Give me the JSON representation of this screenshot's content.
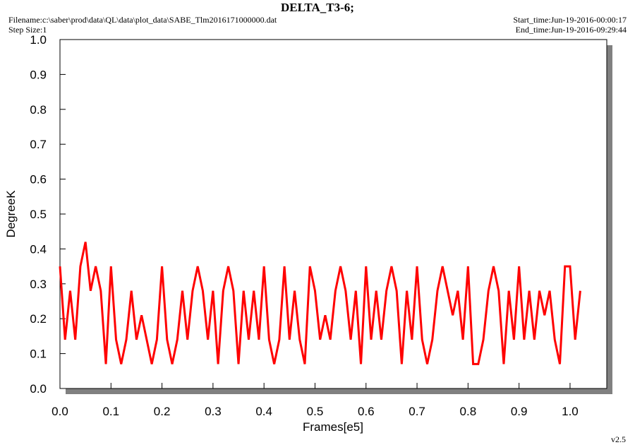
{
  "chart_data": {
    "type": "line",
    "title": "DELTA_T3-6;",
    "filename": "Filename:c:\\saber\\prod\\data\\QL\\data\\plot_data\\SABE_Tlm2016171000000.dat",
    "step_size": "Step Size:1",
    "start_time": "Start_time:Jun-19-2016-00:00:17",
    "end_time": "End_time:Jun-19-2016-09:29:44",
    "version": "v2.5",
    "xlabel": "Frames[e5]",
    "ylabel": "DegreeK",
    "xlim": [
      0,
      1.072
    ],
    "ylim": [
      0,
      1
    ],
    "xticks": [
      {
        "value": 0,
        "label": "0.0"
      },
      0.1,
      0.2,
      0.3,
      0.4,
      0.5,
      0.6,
      0.7,
      0.8,
      0.9,
      {
        "value": 1,
        "label": "1.0"
      }
    ],
    "yticks": [
      {
        "value": 0,
        "label": "0.0"
      },
      0.1,
      0.2,
      0.3,
      0.4,
      0.5,
      0.6,
      0.7,
      0.8,
      0.9,
      {
        "value": 1,
        "label": "1.0"
      }
    ],
    "x": [
      0,
      0.01,
      0.02,
      0.03,
      0.04,
      0.05,
      0.06,
      0.07,
      0.08,
      0.09,
      0.1,
      0.11,
      0.12,
      0.13,
      0.14,
      0.15,
      0.16,
      0.17,
      0.18,
      0.19,
      0.2,
      0.21,
      0.22,
      0.23,
      0.24,
      0.25,
      0.26,
      0.27,
      0.28,
      0.29,
      0.3,
      0.31,
      0.32,
      0.33,
      0.34,
      0.35,
      0.36,
      0.37,
      0.38,
      0.39,
      0.4,
      0.41,
      0.42,
      0.43,
      0.44,
      0.45,
      0.46,
      0.47,
      0.48,
      0.49,
      0.5,
      0.51,
      0.52,
      0.53,
      0.54,
      0.55,
      0.56,
      0.57,
      0.58,
      0.59,
      0.6,
      0.61,
      0.62,
      0.63,
      0.64,
      0.65,
      0.66,
      0.67,
      0.68,
      0.69,
      0.7,
      0.71,
      0.72,
      0.73,
      0.74,
      0.75,
      0.76,
      0.77,
      0.78,
      0.79,
      0.8,
      0.81,
      0.82,
      0.83,
      0.84,
      0.85,
      0.86,
      0.87,
      0.88,
      0.89,
      0.9,
      0.91,
      0.92,
      0.93,
      0.94,
      0.95,
      0.96,
      0.97,
      0.98,
      0.99,
      1.0,
      1.01,
      1.02
    ],
    "series": [
      {
        "color": "#ff0000",
        "values": [
          0.35,
          0.14,
          0.28,
          0.14,
          0.35,
          0.42,
          0.28,
          0.35,
          0.28,
          0.07,
          0.35,
          0.14,
          0.07,
          0.14,
          0.28,
          0.14,
          0.21,
          0.14,
          0.07,
          0.14,
          0.35,
          0.14,
          0.07,
          0.14,
          0.28,
          0.14,
          0.28,
          0.35,
          0.28,
          0.14,
          0.28,
          0.07,
          0.28,
          0.35,
          0.28,
          0.07,
          0.28,
          0.14,
          0.28,
          0.14,
          0.35,
          0.14,
          0.07,
          0.14,
          0.35,
          0.14,
          0.28,
          0.14,
          0.07,
          0.35,
          0.28,
          0.14,
          0.21,
          0.14,
          0.28,
          0.35,
          0.28,
          0.14,
          0.28,
          0.07,
          0.35,
          0.14,
          0.28,
          0.14,
          0.28,
          0.35,
          0.28,
          0.07,
          0.28,
          0.14,
          0.35,
          0.14,
          0.07,
          0.14,
          0.28,
          0.35,
          0.28,
          0.21,
          0.28,
          0.14,
          0.35,
          0.07,
          0.07,
          0.14,
          0.28,
          0.35,
          0.28,
          0.07,
          0.28,
          0.14,
          0.35,
          0.14,
          0.28,
          0.14,
          0.28,
          0.21,
          0.28,
          0.14,
          0.07,
          0.35,
          0.35,
          0.14,
          0.28
        ]
      }
    ]
  }
}
